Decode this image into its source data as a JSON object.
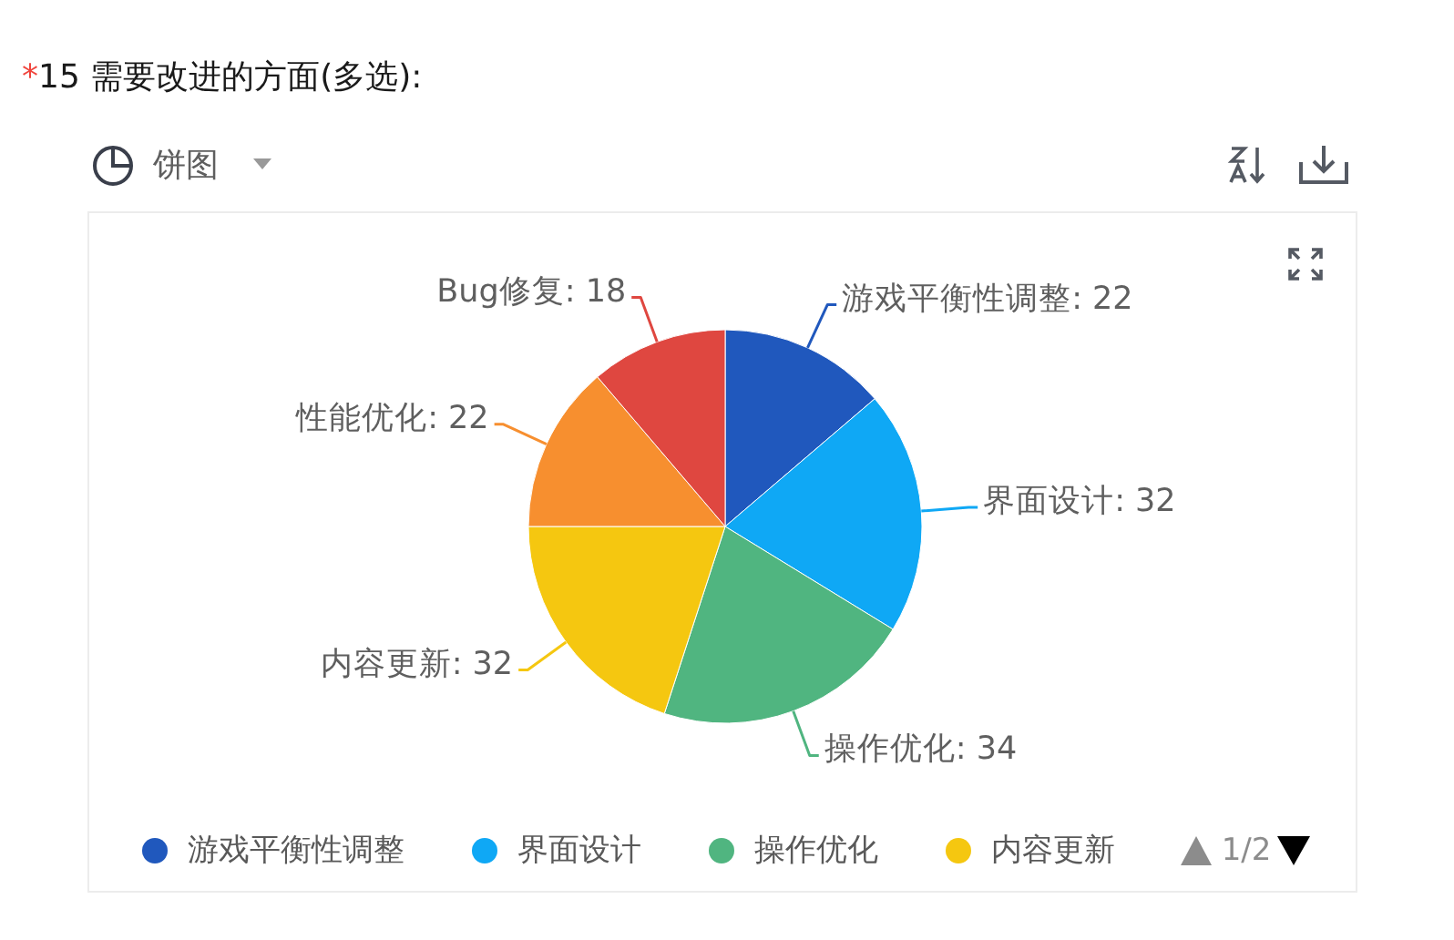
{
  "chart_data": {
    "type": "pie",
    "title": "*15 需要改进的方面(多选):",
    "categories": [
      "游戏平衡性调整",
      "界面设计",
      "操作优化",
      "内容更新",
      "性能优化",
      "Bug修复"
    ],
    "values": [
      22,
      32,
      34,
      32,
      22,
      18
    ],
    "value_labels": [
      ": 22",
      ": 32",
      ": 34",
      ": 32",
      ": 22",
      ": 18"
    ],
    "colors": [
      "#2058bd",
      "#0fa8f5",
      "#50b580",
      "#f5c710",
      "#f78f2f",
      "#df4740"
    ],
    "legend": "bottom",
    "annotations": [
      "饼图",
      "1/2"
    ]
  }
}
